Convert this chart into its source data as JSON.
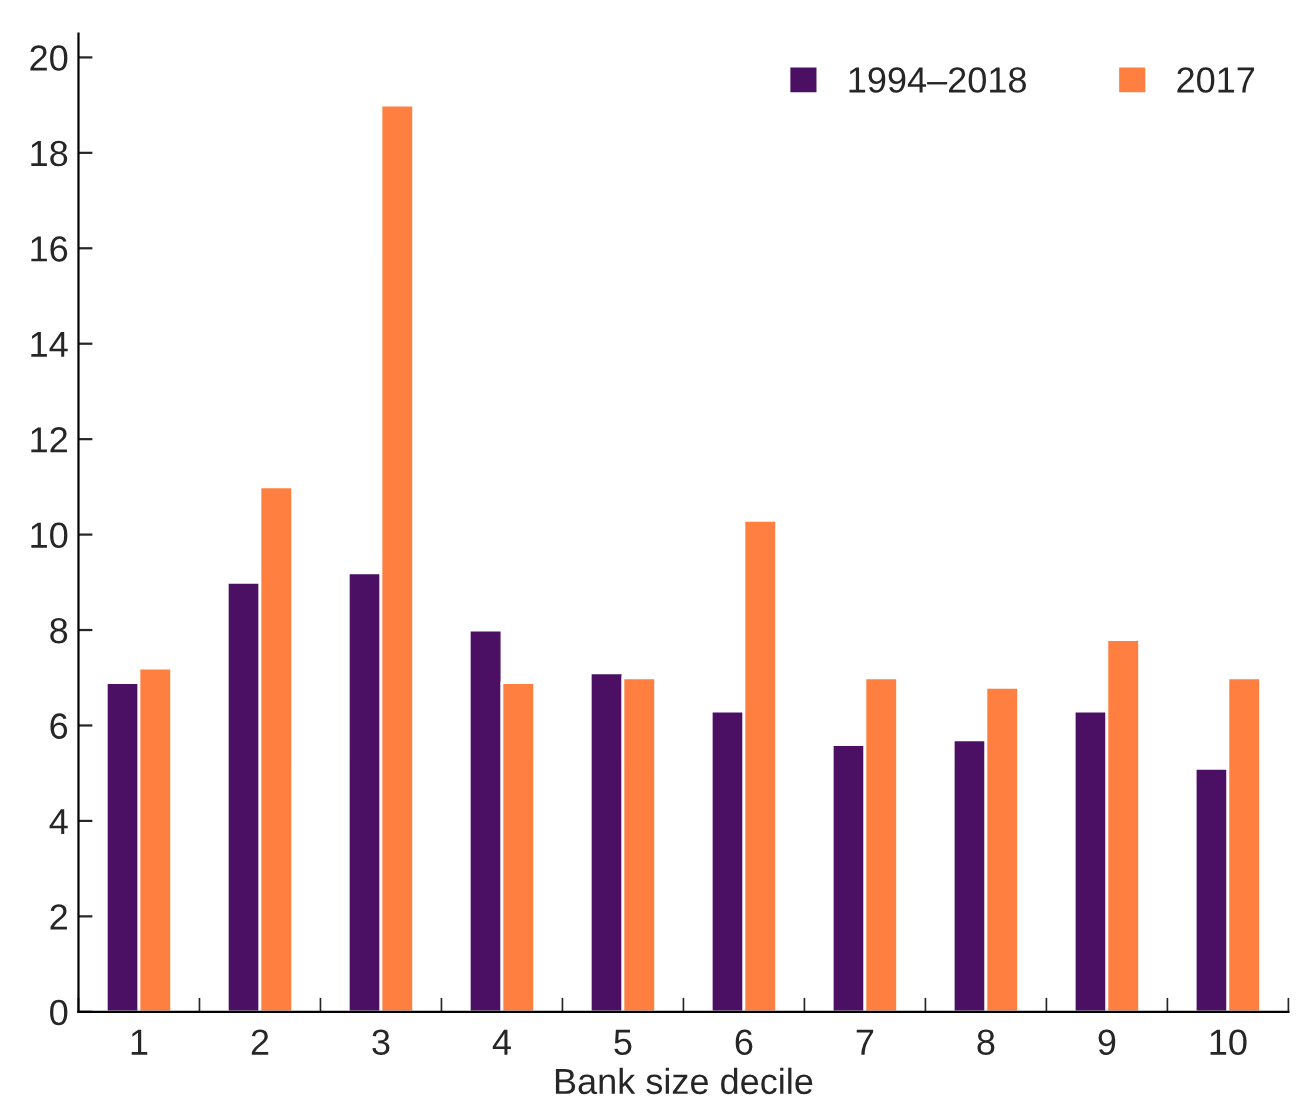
{
  "chart_data": {
    "type": "bar",
    "xlabel": "Bank size decile",
    "categories": [
      "1",
      "2",
      "3",
      "4",
      "5",
      "6",
      "7",
      "8",
      "9",
      "10"
    ],
    "series": [
      {
        "name": "1994–2018",
        "color": "#4b0f63",
        "values": [
          6.9,
          9.0,
          9.2,
          8.0,
          7.1,
          6.3,
          5.6,
          5.7,
          6.3,
          5.1
        ]
      },
      {
        "name": "2017",
        "color": "#ff7f40",
        "values": [
          7.2,
          11.0,
          19.0,
          6.9,
          7.0,
          10.3,
          7.0,
          6.8,
          7.8,
          7.0
        ]
      }
    ],
    "ylim": [
      0,
      20.5
    ],
    "yticks": [
      0,
      2,
      4,
      6,
      8,
      10,
      12,
      14,
      16,
      18,
      20
    ],
    "grid": false,
    "legend": "top right"
  }
}
